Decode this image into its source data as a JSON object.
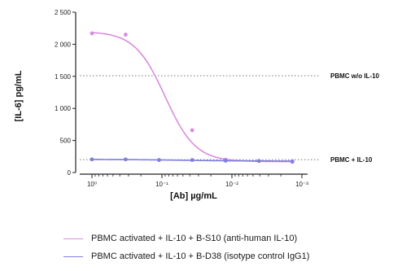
{
  "chart_data": {
    "type": "line",
    "xlabel": "[Ab] µg/mL",
    "ylabel": "[IL-6] pg/mL",
    "xscale": "log",
    "x_reversed": true,
    "xlim": [
      1,
      0.001
    ],
    "ylim": [
      0,
      2500
    ],
    "grid": false,
    "x_ticks": [
      {
        "value": 1,
        "label": "10⁰"
      },
      {
        "value": 0.1,
        "label": "10⁻¹"
      },
      {
        "value": 0.01,
        "label": "10⁻²"
      },
      {
        "value": 0.001,
        "label": "10⁻³"
      }
    ],
    "y_ticks": [
      {
        "value": 0,
        "label": "0"
      },
      {
        "value": 500,
        "label": "500"
      },
      {
        "value": 1000,
        "label": "1 000"
      },
      {
        "value": 1500,
        "label": "1 500"
      },
      {
        "value": 2000,
        "label": "2 000"
      },
      {
        "value": 2500,
        "label": "2 500"
      }
    ],
    "reference_lines": [
      {
        "label": "PBMC w/o IL-10",
        "y": 1510
      },
      {
        "label": "PBMC + IL-10",
        "y": 200
      }
    ],
    "series": [
      {
        "name": "PBMC activated + IL-10 + B-S10 (anti-human  IL-10)",
        "color": "#d98be0",
        "points": [
          {
            "x": 1.0,
            "y": 2170
          },
          {
            "x": 0.33,
            "y": 2150
          },
          {
            "x": 0.037,
            "y": 660
          },
          {
            "x": 0.0123,
            "y": 200
          },
          {
            "x": 0.0041,
            "y": 180
          },
          {
            "x": 0.00137,
            "y": 165
          }
        ],
        "fit": {
          "top": 2200,
          "bottom": 170,
          "ec50": 0.09,
          "hill": 2.0
        }
      },
      {
        "name": "PBMC activated + IL-10 + B-D38 (isotype control IgG1)",
        "color": "#7f7fe0",
        "points": [
          {
            "x": 1.0,
            "y": 205
          },
          {
            "x": 0.33,
            "y": 205
          },
          {
            "x": 0.11,
            "y": 195
          },
          {
            "x": 0.037,
            "y": 195
          },
          {
            "x": 0.0123,
            "y": 185
          },
          {
            "x": 0.0041,
            "y": 180
          },
          {
            "x": 0.00137,
            "y": 175
          }
        ],
        "fit": {
          "top": 205,
          "bottom": 178,
          "ec50": 0.05,
          "hill": 1.0
        }
      }
    ],
    "legend_position": "bottom"
  }
}
